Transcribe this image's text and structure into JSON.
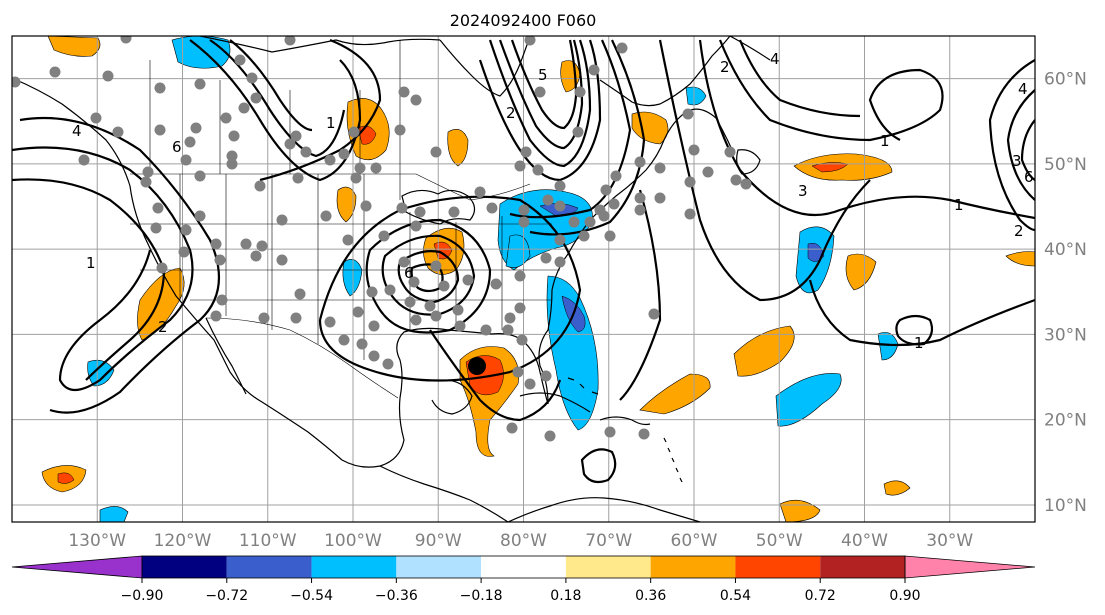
{
  "title": "2024092400 F060",
  "map": {
    "lon_range": [
      -140,
      -20
    ],
    "lat_range": [
      8,
      65
    ],
    "lon_ticks": [
      -130,
      -120,
      -110,
      -100,
      -90,
      -80,
      -70,
      -60,
      -50,
      -40,
      -30
    ],
    "lon_tick_labels": [
      "130°W",
      "120°W",
      "110°W",
      "100°W",
      "90°W",
      "80°W",
      "70°W",
      "60°W",
      "50°W",
      "40°W",
      "30°W"
    ],
    "lat_ticks": [
      60,
      50,
      40,
      30,
      20,
      10
    ],
    "lat_tick_labels": [
      "60°N",
      "50°N",
      "40°N",
      "30°N",
      "20°N",
      "10°N"
    ],
    "grid": true,
    "contour_labels": [
      "1",
      "2",
      "3",
      "4",
      "5",
      "6"
    ]
  },
  "colorbar": {
    "colors": [
      "#9932cc",
      "#000080",
      "#3a5fcd",
      "#00bfff",
      "#b0e2ff",
      "#ffffff",
      "#ffe98a",
      "#ffa500",
      "#ff4500",
      "#b22222",
      "#ff82ab"
    ],
    "labels": [
      "−0.90",
      "−0.72",
      "−0.54",
      "−0.36",
      "−0.18",
      "0.18",
      "0.36",
      "0.54",
      "0.72",
      "0.90"
    ],
    "extend": "both"
  }
}
